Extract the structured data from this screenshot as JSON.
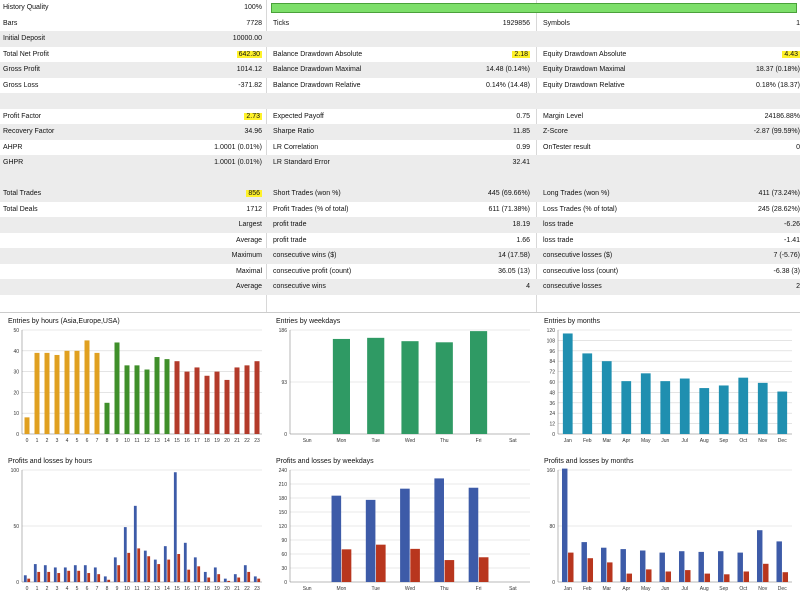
{
  "report": {
    "history_quality": {
      "label": "History Quality",
      "value": "100%",
      "fraction": 1.0
    },
    "rows": [
      {
        "c1": [
          "Bars",
          "7728"
        ],
        "c2": [
          "Ticks",
          "1929856"
        ],
        "c3": [
          "Symbols",
          "1"
        ]
      },
      {
        "c1": [
          "Initial Deposit",
          "10000.00"
        ],
        "c2": [
          "",
          ""
        ],
        "c3": [
          "",
          ""
        ]
      },
      {
        "c1": [
          "Total Net Profit",
          "642.30"
        ],
        "c2": [
          "Balance Drawdown Absolute",
          "2.18"
        ],
        "c3": [
          "Equity Drawdown Absolute",
          "4.43"
        ]
      },
      {
        "c1": [
          "Gross Profit",
          "1014.12"
        ],
        "c2": [
          "Balance Drawdown Maximal",
          "14.48 (0.14%)"
        ],
        "c3": [
          "Equity Drawdown Maximal",
          "18.37 (0.18%)"
        ]
      },
      {
        "c1": [
          "Gross Loss",
          "-371.82"
        ],
        "c2": [
          "Balance Drawdown Relative",
          "0.14% (14.48)"
        ],
        "c3": [
          "Equity Drawdown Relative",
          "0.18% (18.37)"
        ]
      },
      {
        "c1": [
          "",
          ""
        ],
        "c2": [
          "",
          ""
        ],
        "c3": [
          "",
          ""
        ]
      },
      {
        "c1": [
          "Profit Factor",
          "2.73"
        ],
        "c2": [
          "Expected Payoff",
          "0.75"
        ],
        "c3": [
          "Margin Level",
          "24186.88%"
        ]
      },
      {
        "c1": [
          "Recovery Factor",
          "34.96"
        ],
        "c2": [
          "Sharpe Ratio",
          "11.85"
        ],
        "c3": [
          "Z-Score",
          "-2.87 (99.59%)"
        ]
      },
      {
        "c1": [
          "AHPR",
          "1.0001 (0.01%)"
        ],
        "c2": [
          "LR Correlation",
          "0.99"
        ],
        "c3": [
          "OnTester result",
          "0"
        ]
      },
      {
        "c1": [
          "GHPR",
          "1.0001 (0.01%)"
        ],
        "c2": [
          "LR Standard Error",
          "32.41"
        ],
        "c3": [
          "",
          ""
        ]
      },
      {
        "c1": [
          "",
          ""
        ],
        "c2": [
          "",
          ""
        ],
        "c3": [
          "",
          ""
        ]
      },
      {
        "c1": [
          "Total Trades",
          "856"
        ],
        "c2": [
          "Short Trades (won %)",
          "445 (69.66%)"
        ],
        "c3": [
          "Long Trades (won %)",
          "411 (73.24%)"
        ]
      },
      {
        "c1": [
          "Total Deals",
          "1712"
        ],
        "c2": [
          "Profit Trades (% of total)",
          "611 (71.38%)"
        ],
        "c3": [
          "Loss Trades (% of total)",
          "245 (28.62%)"
        ]
      },
      {
        "c1": [
          "",
          "Largest"
        ],
        "c2": [
          "profit trade",
          "18.19"
        ],
        "c3": [
          "loss trade",
          "-6.26"
        ]
      },
      {
        "c1": [
          "",
          "Average"
        ],
        "c2": [
          "profit trade",
          "1.66"
        ],
        "c3": [
          "loss trade",
          "-1.41"
        ]
      },
      {
        "c1": [
          "",
          "Maximum"
        ],
        "c2": [
          "consecutive wins ($)",
          "14 (17.58)"
        ],
        "c3": [
          "consecutive losses ($)",
          "7 (-5.76)"
        ]
      },
      {
        "c1": [
          "",
          "Maximal"
        ],
        "c2": [
          "consecutive profit (count)",
          "36.05 (13)"
        ],
        "c3": [
          "consecutive loss (count)",
          "-6.38 (3)"
        ]
      },
      {
        "c1": [
          "",
          "Average"
        ],
        "c2": [
          "consecutive wins",
          "4"
        ],
        "c3": [
          "consecutive losses",
          "2"
        ]
      }
    ]
  },
  "colors": {
    "highlight": "#fff22a",
    "quality_bar": "#7ddf6a",
    "hours_asia": "#e0a020",
    "hours_europe": "#3f8f2a",
    "hours_usa": "#b33a2a",
    "weekday_bar": "#2f9a64",
    "month_bar": "#1f8fb0",
    "profit_blue": "#3d5ba8",
    "loss_red": "#b8361e"
  },
  "chart_data": [
    {
      "type": "bar",
      "title": "Entries by hours (Asia,Europe,USA)",
      "categories": [
        "0",
        "1",
        "2",
        "3",
        "4",
        "5",
        "6",
        "7",
        "8",
        "9",
        "10",
        "11",
        "12",
        "13",
        "14",
        "15",
        "16",
        "17",
        "18",
        "19",
        "20",
        "21",
        "22",
        "23"
      ],
      "values": [
        8,
        39,
        39,
        38,
        40,
        40,
        45,
        39,
        15,
        44,
        33,
        33,
        31,
        37,
        36,
        35,
        30,
        32,
        28,
        30,
        26,
        32,
        33,
        35
      ],
      "bar_colors": [
        "#e0a020",
        "#e0a020",
        "#e0a020",
        "#e0a020",
        "#e0a020",
        "#e0a020",
        "#e0a020",
        "#e0a020",
        "#3f8f2a",
        "#3f8f2a",
        "#3f8f2a",
        "#3f8f2a",
        "#3f8f2a",
        "#3f8f2a",
        "#3f8f2a",
        "#b33a2a",
        "#b33a2a",
        "#b33a2a",
        "#b33a2a",
        "#b33a2a",
        "#b33a2a",
        "#b33a2a",
        "#b33a2a",
        "#b33a2a"
      ],
      "yticks": [
        "0",
        "10",
        "20",
        "30",
        "40",
        "50"
      ],
      "ylim": [
        0,
        50
      ],
      "grid": true
    },
    {
      "type": "bar",
      "title": "Entries by weekdays",
      "categories": [
        "Sun",
        "Mon",
        "Tue",
        "Wed",
        "Thu",
        "Fri",
        "Sat"
      ],
      "values": [
        0,
        170,
        172,
        166,
        164,
        184,
        0
      ],
      "bar_colors": [
        "#2f9a64",
        "#2f9a64",
        "#2f9a64",
        "#2f9a64",
        "#2f9a64",
        "#2f9a64",
        "#2f9a64"
      ],
      "yticks": [
        "0",
        "93",
        "186"
      ],
      "ylim": [
        0,
        186
      ],
      "grid": true
    },
    {
      "type": "bar",
      "title": "Entries by months",
      "categories": [
        "Jan",
        "Feb",
        "Mar",
        "Apr",
        "May",
        "Jun",
        "Jul",
        "Aug",
        "Sep",
        "Oct",
        "Nov",
        "Dec"
      ],
      "values": [
        116,
        93,
        84,
        61,
        70,
        61,
        64,
        53,
        56,
        65,
        59,
        49
      ],
      "bar_colors": [
        "#1f8fb0",
        "#1f8fb0",
        "#1f8fb0",
        "#1f8fb0",
        "#1f8fb0",
        "#1f8fb0",
        "#1f8fb0",
        "#1f8fb0",
        "#1f8fb0",
        "#1f8fb0",
        "#1f8fb0",
        "#1f8fb0"
      ],
      "yticks": [
        "0",
        "12",
        "24",
        "36",
        "48",
        "60",
        "72",
        "84",
        "96",
        "108",
        "120"
      ],
      "ylim": [
        0,
        120
      ],
      "grid": true
    },
    {
      "type": "bar",
      "title": "Profits and losses by hours",
      "categories": [
        "0",
        "1",
        "2",
        "3",
        "4",
        "5",
        "6",
        "7",
        "8",
        "9",
        "10",
        "11",
        "12",
        "13",
        "14",
        "15",
        "16",
        "17",
        "18",
        "19",
        "20",
        "21",
        "22",
        "23"
      ],
      "series": [
        {
          "values": [
            6,
            16,
            15,
            13,
            13,
            15,
            15,
            13,
            5,
            22,
            49,
            68,
            28,
            20,
            32,
            98,
            35,
            22,
            9,
            13,
            3,
            7,
            15,
            5
          ]
        },
        {
          "values": [
            3,
            9,
            9,
            8,
            10,
            10,
            8,
            7,
            2,
            15,
            26,
            30,
            23,
            16,
            20,
            25,
            11,
            14,
            4,
            7,
            1,
            4,
            9,
            3
          ]
        }
      ],
      "bar_colors": [
        "#3d5ba8",
        "#b8361e"
      ],
      "yticks": [
        "0",
        "50",
        "100"
      ],
      "ylim": [
        0,
        100
      ],
      "grid": true
    },
    {
      "type": "bar",
      "title": "Profits and losses by weekdays",
      "categories": [
        "Sun",
        "Mon",
        "Tue",
        "Wed",
        "Thu",
        "Fri",
        "Sat"
      ],
      "series": [
        {
          "values": [
            0,
            185,
            176,
            200,
            222,
            202,
            0
          ]
        },
        {
          "values": [
            0,
            70,
            80,
            71,
            47,
            53,
            0
          ]
        }
      ],
      "bar_colors": [
        "#3d5ba8",
        "#b8361e"
      ],
      "yticks": [
        "0",
        "30",
        "60",
        "90",
        "120",
        "150",
        "180",
        "210",
        "240"
      ],
      "ylim": [
        0,
        240
      ],
      "grid": true
    },
    {
      "type": "bar",
      "title": "Profits and losses by months",
      "categories": [
        "Jan",
        "Feb",
        "Mar",
        "Apr",
        "May",
        "Jun",
        "Jul",
        "Aug",
        "Sep",
        "Oct",
        "Nov",
        "Dec"
      ],
      "series": [
        {
          "values": [
            162,
            57,
            49,
            47,
            45,
            42,
            44,
            43,
            44,
            42,
            74,
            58
          ]
        },
        {
          "values": [
            42,
            34,
            28,
            12,
            18,
            15,
            17,
            12,
            11,
            15,
            26,
            14
          ]
        }
      ],
      "bar_colors": [
        "#3d5ba8",
        "#b8361e"
      ],
      "yticks": [
        "0",
        "80",
        "160"
      ],
      "ylim": [
        0,
        160
      ],
      "grid": true
    }
  ]
}
